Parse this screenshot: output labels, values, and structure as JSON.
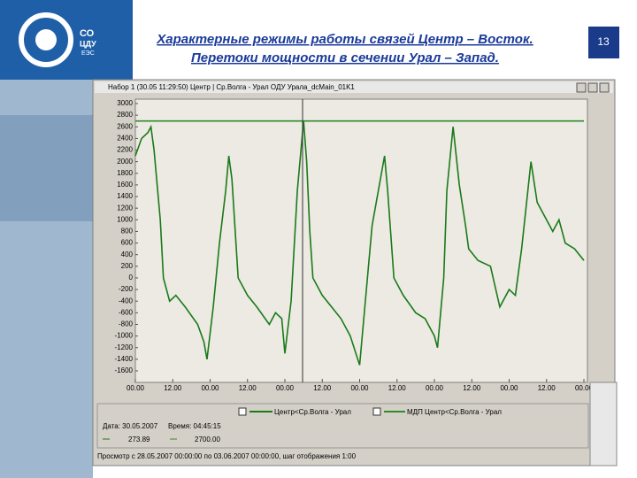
{
  "slide": {
    "title_line1": "Характерные режимы работы связей Центр – Восток.",
    "title_line2": "Перетоки мощности в сечении Урал – Запад.",
    "page_number": "13",
    "logo": [
      "СО",
      "ЦДУ",
      "ЕЭС"
    ]
  },
  "window": {
    "title": "Набор 1 (30.05 11:29:50) Центр | Ср.Волга - Урал ОДУ Урала_dcMain_01K1",
    "date": "Дата: 30.05.2007",
    "time": "Время: 04:45:15",
    "readouts": [
      "273.89",
      "2700.00"
    ],
    "status": "Просмотр с 28.05.2007 00:00:00 по 03.06.2007 00:00:00, шаг отображения 1:00"
  },
  "chart_data": {
    "type": "line",
    "xlim": [
      0,
      144
    ],
    "ylim": [
      -1600,
      3000
    ],
    "xticks": [
      {
        "value": 0,
        "label": "00.00"
      },
      {
        "value": 12,
        "label": "12.00"
      },
      {
        "value": 24,
        "label": "00.00"
      },
      {
        "value": 36,
        "label": "12.00"
      },
      {
        "value": 48,
        "label": "00.00"
      },
      {
        "value": 60,
        "label": "12.00"
      },
      {
        "value": 72,
        "label": "00.00"
      },
      {
        "value": 84,
        "label": "12.00"
      },
      {
        "value": 96,
        "label": "00.00"
      },
      {
        "value": 108,
        "label": "12.00"
      },
      {
        "value": 120,
        "label": "00.00"
      },
      {
        "value": 132,
        "label": "12.00"
      },
      {
        "value": 144,
        "label": "00.00"
      }
    ],
    "yticks": [
      3000,
      2800,
      2600,
      2400,
      2200,
      2000,
      1800,
      1600,
      1400,
      1200,
      1000,
      800,
      600,
      400,
      200,
      0,
      -200,
      -400,
      -600,
      -800,
      -1000,
      -1200,
      -1400,
      -1600
    ],
    "grid": false,
    "series": [
      {
        "name": "Центр<Ср.Волга - Урал",
        "color": "#1a7a1a",
        "x": [
          0,
          2,
          4,
          5,
          6,
          8,
          9,
          11,
          13,
          16,
          20,
          22,
          23,
          25,
          27,
          29,
          30,
          31,
          33,
          36,
          39,
          43,
          45,
          47,
          48,
          50,
          52,
          54,
          55,
          56,
          57,
          60,
          63,
          66,
          69,
          72,
          74,
          76,
          79,
          80,
          81,
          83,
          86,
          90,
          93,
          96,
          97,
          99,
          100,
          102,
          104,
          106,
          107,
          110,
          114,
          117,
          120,
          122,
          124,
          126,
          127,
          129,
          131,
          134,
          136,
          138,
          141,
          144
        ],
        "values": [
          2100,
          2400,
          2500,
          2600,
          2200,
          1000,
          0,
          -400,
          -300,
          -500,
          -800,
          -1100,
          -1400,
          -500,
          600,
          1500,
          2100,
          1700,
          0,
          -300,
          -500,
          -800,
          -600,
          -700,
          -1300,
          -400,
          1500,
          2700,
          2000,
          800,
          0,
          -300,
          -500,
          -700,
          -1000,
          -1500,
          -300,
          900,
          1800,
          2100,
          1500,
          0,
          -300,
          -600,
          -700,
          -1000,
          -1200,
          0,
          1500,
          2600,
          1600,
          900,
          500,
          300,
          200,
          -500,
          -200,
          -300,
          500,
          1500,
          2000,
          1300,
          1100,
          800,
          1000,
          600,
          500,
          300
        ]
      },
      {
        "name": "МДП Центр<Ср.Волга - Урал",
        "color": "#2e8b2e",
        "x": [
          0,
          144
        ],
        "values": [
          2700,
          2700
        ]
      }
    ]
  }
}
